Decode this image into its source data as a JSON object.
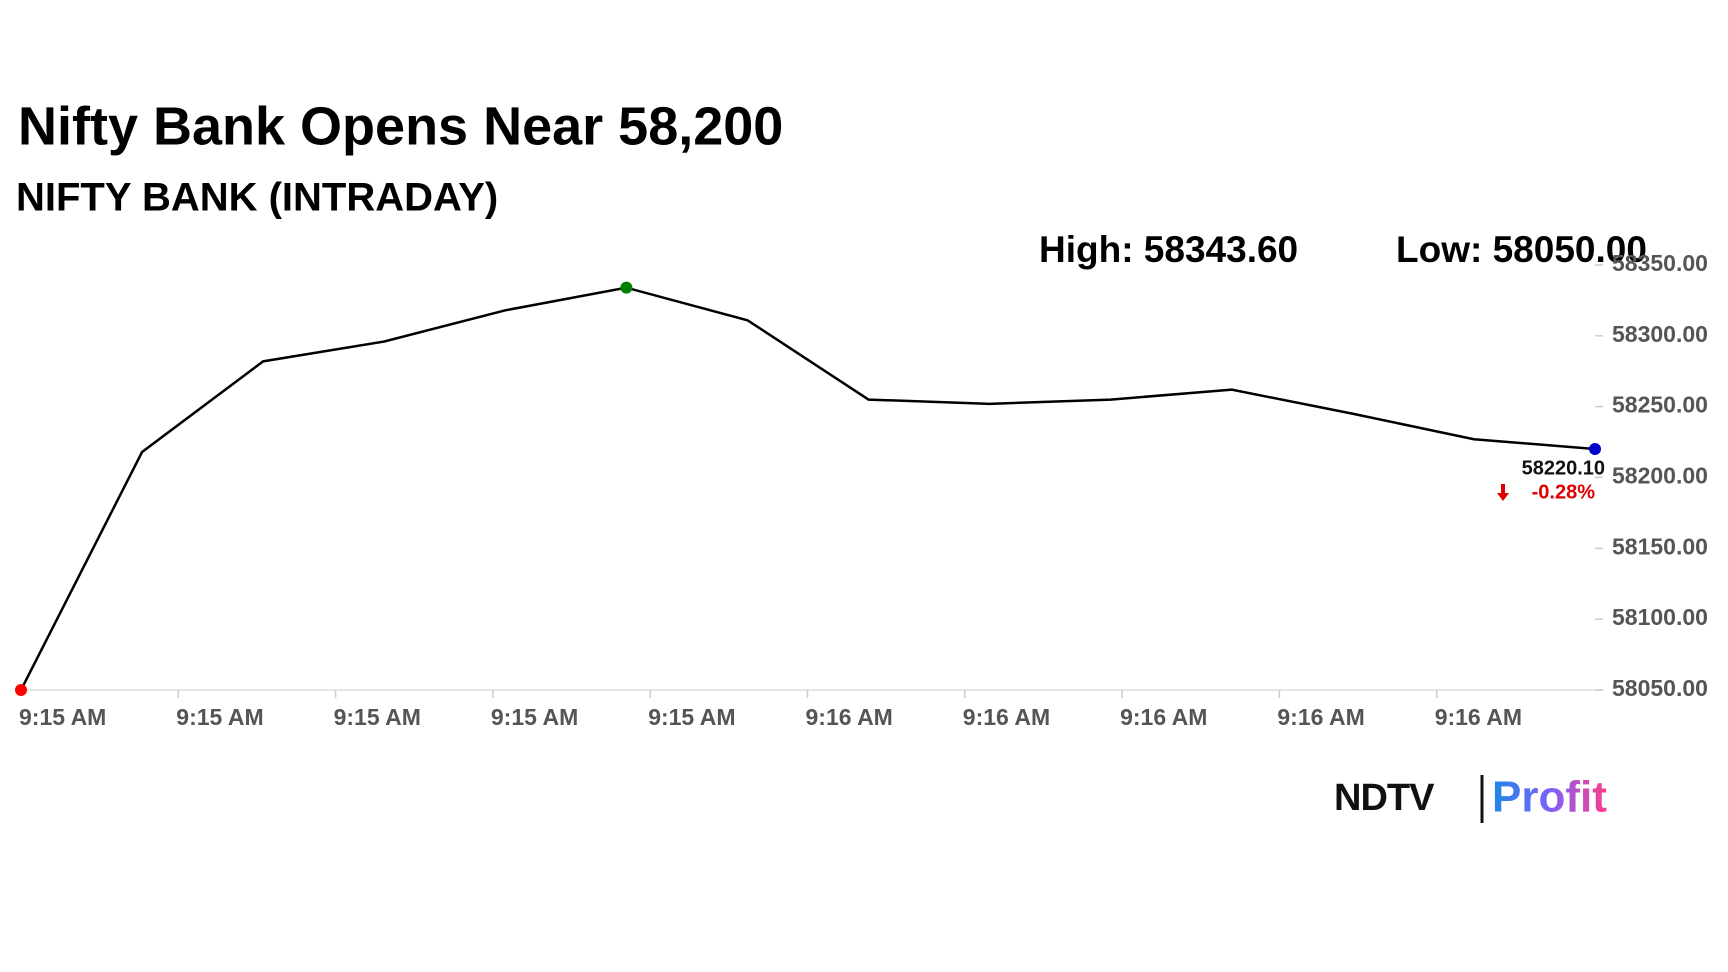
{
  "chart_data": {
    "type": "line",
    "title": "Nifty Bank Opens Near 58,200",
    "subtitle": "NIFTY BANK (INTRADAY)",
    "high_label": "High: 58343.60",
    "low_label": "Low: 58050.00",
    "xtick_labels": [
      "9:15 AM",
      "9:15 AM",
      "9:15 AM",
      "9:15 AM",
      "9:15 AM",
      "9:16 AM",
      "9:16 AM",
      "9:16 AM",
      "9:16 AM",
      "9:16 AM"
    ],
    "series": [
      {
        "color": "#000000",
        "values": [
          58050,
          58218,
          58282,
          58296,
          58318,
          58334,
          58311,
          58255,
          58252,
          58255,
          58262,
          58245,
          58227,
          58220.1
        ],
        "value_labels": [
          null,
          null,
          null,
          null,
          null,
          null,
          null,
          null,
          null,
          null,
          null,
          null,
          null,
          "58220.10"
        ],
        "marker_colors": [
          "#ff0000",
          null,
          null,
          null,
          null,
          "#008000",
          null,
          null,
          null,
          null,
          null,
          null,
          null,
          "#0000cc"
        ]
      }
    ],
    "change_label": "-0.28%",
    "change_color": "#e00000",
    "ylim": [
      58050,
      58350
    ],
    "yticks": [
      {
        "value": 58050,
        "label": "58050.00"
      },
      {
        "value": 58100,
        "label": "58100.00"
      },
      {
        "value": 58150,
        "label": "58150.00"
      },
      {
        "value": 58200,
        "label": "58200.00"
      },
      {
        "value": 58250,
        "label": "58250.00"
      },
      {
        "value": 58300,
        "label": "58300.00"
      },
      {
        "value": 58350,
        "label": "58350.00"
      }
    ],
    "grid": false
  },
  "logo": {
    "brand": "NDTV",
    "product": "Profit"
  }
}
